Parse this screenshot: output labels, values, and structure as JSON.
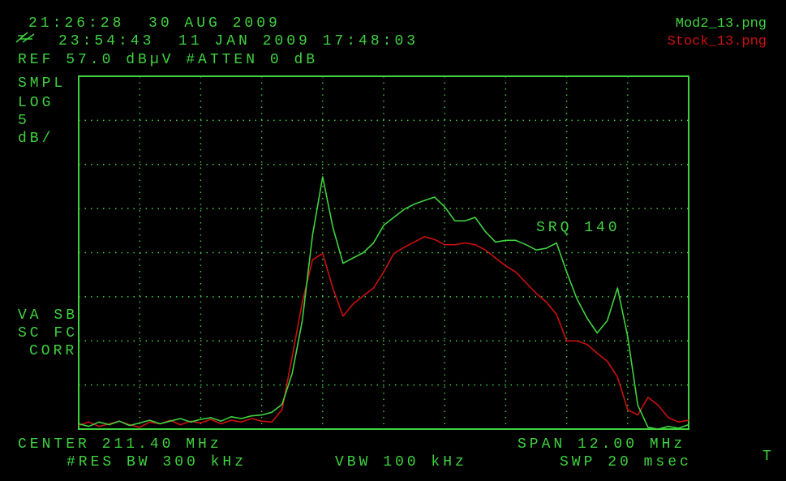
{
  "chart_data": {
    "type": "line",
    "datetime": "21:26:28  30 AUG 2009",
    "saved": "23:54:43  11 JAN 2009 17:48:03",
    "ref_line": "REF 57.0 dBµV #ATTEN 0 dB",
    "scale_labels": [
      "SMPL",
      "LOG",
      "5",
      "dB/"
    ],
    "mode_labels": [
      "VA SB",
      "SC FC",
      "CORR"
    ],
    "center": "CENTER 211.40 MHz",
    "span": "SPAN 12.00 MHz",
    "rbw": "#RES BW 300 kHz",
    "vbw": "VBW 100 kHz",
    "sweep": "SWP 20 msec",
    "srq": "SRQ 140",
    "status": "T",
    "xlim": [
      205.4,
      217.4
    ],
    "xticks": [
      205.4,
      206.6,
      207.8,
      209.0,
      210.2,
      211.4,
      212.6,
      213.8,
      215.0,
      216.2,
      217.4
    ],
    "ylim": [
      17,
      57
    ],
    "yticks": [
      17,
      22,
      27,
      32,
      37,
      42,
      47,
      52,
      57
    ],
    "grid": true,
    "x": [
      205.4,
      205.6,
      205.8,
      206.0,
      206.2,
      206.4,
      206.6,
      206.8,
      207.0,
      207.2,
      207.4,
      207.6,
      207.8,
      208.0,
      208.2,
      208.4,
      208.6,
      208.8,
      209.0,
      209.2,
      209.4,
      209.6,
      209.8,
      210.0,
      210.2,
      210.4,
      210.6,
      210.8,
      211.0,
      211.2,
      211.4,
      211.6,
      211.8,
      212.0,
      212.2,
      212.4,
      212.6,
      212.8,
      213.0,
      213.2,
      213.4,
      213.6,
      213.8,
      214.0,
      214.2,
      214.4,
      214.6,
      214.8,
      215.0,
      215.2,
      215.4,
      215.6,
      215.8,
      216.0,
      216.2,
      216.4,
      216.6,
      216.8,
      217.0,
      217.2,
      217.4
    ],
    "series": [
      {
        "name": "Stock_13.png",
        "color": "#cc1010",
        "values": [
          17.4,
          17.8,
          17.3,
          17.6,
          17.9,
          17.5,
          17.2,
          17.8,
          17.6,
          18.0,
          17.5,
          17.9,
          17.7,
          18.1,
          17.6,
          18.0,
          17.8,
          18.2,
          17.9,
          17.8,
          19.2,
          25.2,
          31.4,
          36.2,
          36.9,
          33.0,
          29.8,
          31.2,
          32.1,
          33.0,
          34.8,
          36.9,
          37.6,
          38.2,
          38.8,
          38.5,
          37.9,
          37.9,
          38.1,
          37.9,
          37.3,
          36.4,
          35.5,
          34.8,
          33.6,
          32.4,
          31.4,
          30.0,
          27.0,
          27.0,
          26.6,
          25.6,
          24.7,
          22.9,
          19.2,
          18.6,
          20.6,
          19.7,
          18.3,
          17.8,
          18.0
        ]
      },
      {
        "name": "Mod2_13.png",
        "color": "#3fd23f",
        "values": [
          17.6,
          17.3,
          17.8,
          17.5,
          17.9,
          17.4,
          17.7,
          18.0,
          17.6,
          17.9,
          18.2,
          17.8,
          18.1,
          18.3,
          17.9,
          18.4,
          18.2,
          18.5,
          18.6,
          18.9,
          19.8,
          23.3,
          29.3,
          39.0,
          45.6,
          39.9,
          35.8,
          36.4,
          37.0,
          38.1,
          40.1,
          41.0,
          41.9,
          42.5,
          42.9,
          43.3,
          42.2,
          40.6,
          40.6,
          41.0,
          39.4,
          38.2,
          38.4,
          38.4,
          37.9,
          37.3,
          37.5,
          38.1,
          34.8,
          31.8,
          29.6,
          27.9,
          29.3,
          33.0,
          27.5,
          19.7,
          17.2,
          17.0,
          17.3,
          17.1,
          17.5
        ]
      }
    ]
  }
}
